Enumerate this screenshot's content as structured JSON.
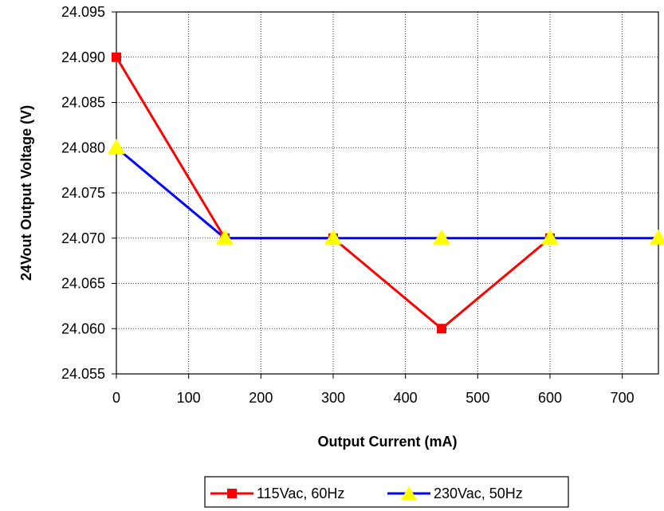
{
  "chart_data": {
    "type": "line",
    "xlabel": "Output Current (mA)",
    "ylabel": "24Vout Output Voltage (V)",
    "xlim": [
      0,
      750
    ],
    "ylim": [
      24.055,
      24.095
    ],
    "xticks": [
      "0",
      "100",
      "200",
      "300",
      "400",
      "500",
      "600",
      "700"
    ],
    "yticks": [
      "24.055",
      "24.060",
      "24.065",
      "24.070",
      "24.075",
      "24.080",
      "24.085",
      "24.090",
      "24.095"
    ],
    "grid": "dotted",
    "legend_position": "bottom",
    "series": [
      {
        "name": "115Vac, 60Hz",
        "color": "#ff0000",
        "marker": "square",
        "marker_color": "#ff0000",
        "x": [
          0,
          150,
          300,
          450,
          600
        ],
        "y": [
          24.09,
          24.07,
          24.07,
          24.06,
          24.07
        ]
      },
      {
        "name": "230Vac, 50Hz",
        "color": "#0000ff",
        "marker": "triangle",
        "marker_color": "#ffff00",
        "x": [
          0,
          150,
          300,
          450,
          600,
          750
        ],
        "y": [
          24.08,
          24.07,
          24.07,
          24.07,
          24.07,
          24.07
        ]
      }
    ]
  }
}
